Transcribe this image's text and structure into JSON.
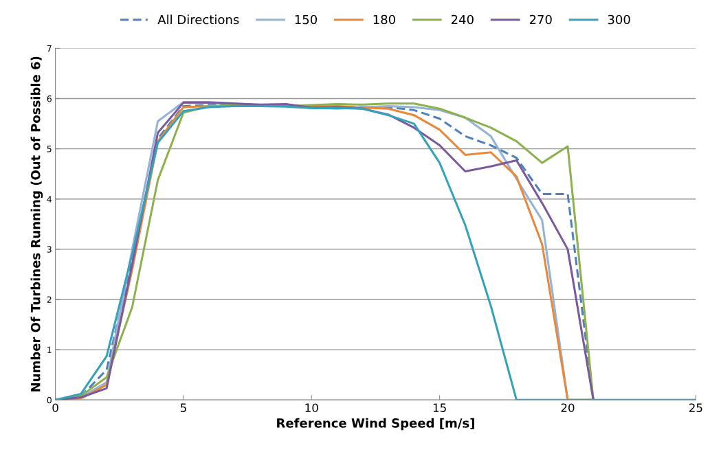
{
  "chart_data": {
    "type": "line",
    "xlabel": "Reference Wind Speed [m/s]",
    "ylabel": "Number Of Turbines Running (Out of Possible 6)",
    "x": [
      0,
      1,
      2,
      3,
      4,
      5,
      6,
      7,
      8,
      9,
      10,
      11,
      12,
      13,
      14,
      15,
      16,
      17,
      18,
      19,
      20,
      21,
      22,
      23,
      24,
      25
    ],
    "series": [
      {
        "name": "All Directions",
        "color": "#4f81bd",
        "line_style": "dashed",
        "values": [
          0,
          0.07,
          0.6,
          2.8,
          5.2,
          5.85,
          5.87,
          5.87,
          5.87,
          5.86,
          5.84,
          5.83,
          5.83,
          5.83,
          5.77,
          5.6,
          5.25,
          5.07,
          4.82,
          4.1,
          4.1,
          0,
          null,
          null,
          null,
          null
        ]
      },
      {
        "name": "150",
        "color": "#95b3d7",
        "values": [
          0,
          0.05,
          0.35,
          3.0,
          5.55,
          5.93,
          5.93,
          5.9,
          5.87,
          5.85,
          5.82,
          5.8,
          5.83,
          5.85,
          5.83,
          5.77,
          5.62,
          5.25,
          4.4,
          3.58,
          0,
          0,
          null,
          null,
          null,
          null
        ]
      },
      {
        "name": "180",
        "color": "#e8883a",
        "values": [
          0,
          0.03,
          0.3,
          2.6,
          5.15,
          5.83,
          5.85,
          5.85,
          5.85,
          5.85,
          5.84,
          5.85,
          5.82,
          5.8,
          5.67,
          5.38,
          4.88,
          4.93,
          4.45,
          3.1,
          0,
          0,
          null,
          null,
          null,
          null
        ]
      },
      {
        "name": "240",
        "color": "#8db14e",
        "values": [
          0,
          0.08,
          0.45,
          1.85,
          4.38,
          5.72,
          5.85,
          5.87,
          5.87,
          5.85,
          5.87,
          5.89,
          5.88,
          5.9,
          5.9,
          5.8,
          5.62,
          5.42,
          5.15,
          4.72,
          5.05,
          0,
          null,
          null,
          null,
          null
        ]
      },
      {
        "name": "270",
        "color": "#7a5a9e",
        "values": [
          0,
          0.05,
          0.23,
          2.7,
          5.32,
          5.92,
          5.92,
          5.9,
          5.88,
          5.89,
          5.82,
          5.83,
          5.8,
          5.68,
          5.42,
          5.07,
          4.55,
          4.65,
          4.77,
          3.92,
          3.0,
          0,
          null,
          null,
          null,
          null
        ]
      },
      {
        "name": "300",
        "color": "#35a2bb",
        "values": [
          0,
          0.12,
          0.87,
          2.9,
          5.12,
          5.75,
          5.83,
          5.85,
          5.85,
          5.84,
          5.81,
          5.81,
          5.8,
          5.67,
          5.5,
          4.72,
          3.48,
          1.87,
          0,
          0,
          0,
          0,
          0,
          0,
          0,
          0
        ]
      }
    ],
    "xlim": [
      0,
      25
    ],
    "xticks": [
      0,
      5,
      10,
      15,
      20,
      25
    ],
    "ylim": [
      0,
      7
    ],
    "yticks": [
      0,
      1,
      2,
      3,
      4,
      5,
      6,
      7
    ],
    "grid": "y",
    "legend": "top",
    "line_style": "solid",
    "marker": "none"
  }
}
